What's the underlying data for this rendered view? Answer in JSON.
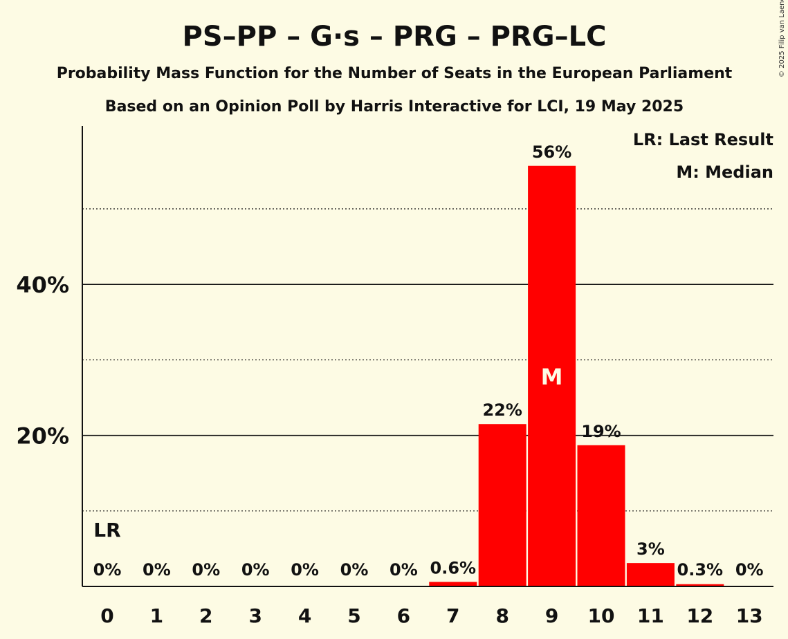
{
  "chart_data": {
    "type": "bar",
    "title": "PS–PP – G·s – PRG – PRG–LC",
    "subtitle": "Probability Mass Function for the Number of Seats in the European Parliament",
    "subtitle2": "Based on an Opinion Poll by Harris Interactive for LCI, 19 May 2025",
    "copyright": "© 2025 Filip van Laenen",
    "categories": [
      "0",
      "1",
      "2",
      "3",
      "4",
      "5",
      "6",
      "7",
      "8",
      "9",
      "10",
      "11",
      "12",
      "13"
    ],
    "values": [
      0,
      0,
      0,
      0,
      0,
      0,
      0,
      0.6,
      21.5,
      55.7,
      18.7,
      3.1,
      0.3,
      0
    ],
    "data_labels": [
      "0%",
      "0%",
      "0%",
      "0%",
      "0%",
      "0%",
      "0%",
      "0.6%",
      "22%",
      "56%",
      "19%",
      "3%",
      "0.3%",
      "0%"
    ],
    "y_tick_labels": [
      {
        "value": 20,
        "label": "20%"
      },
      {
        "value": 40,
        "label": "40%"
      }
    ],
    "minor_gridlines": [
      10,
      30,
      50
    ],
    "ylim": [
      0,
      61
    ],
    "bar_color": "#ff0000",
    "median_index": 9,
    "median_marker": "M",
    "last_result_index": 0,
    "last_result_marker": "LR",
    "legend": [
      "LR: Last Result",
      "M: Median"
    ],
    "legend_position": "top-right"
  }
}
